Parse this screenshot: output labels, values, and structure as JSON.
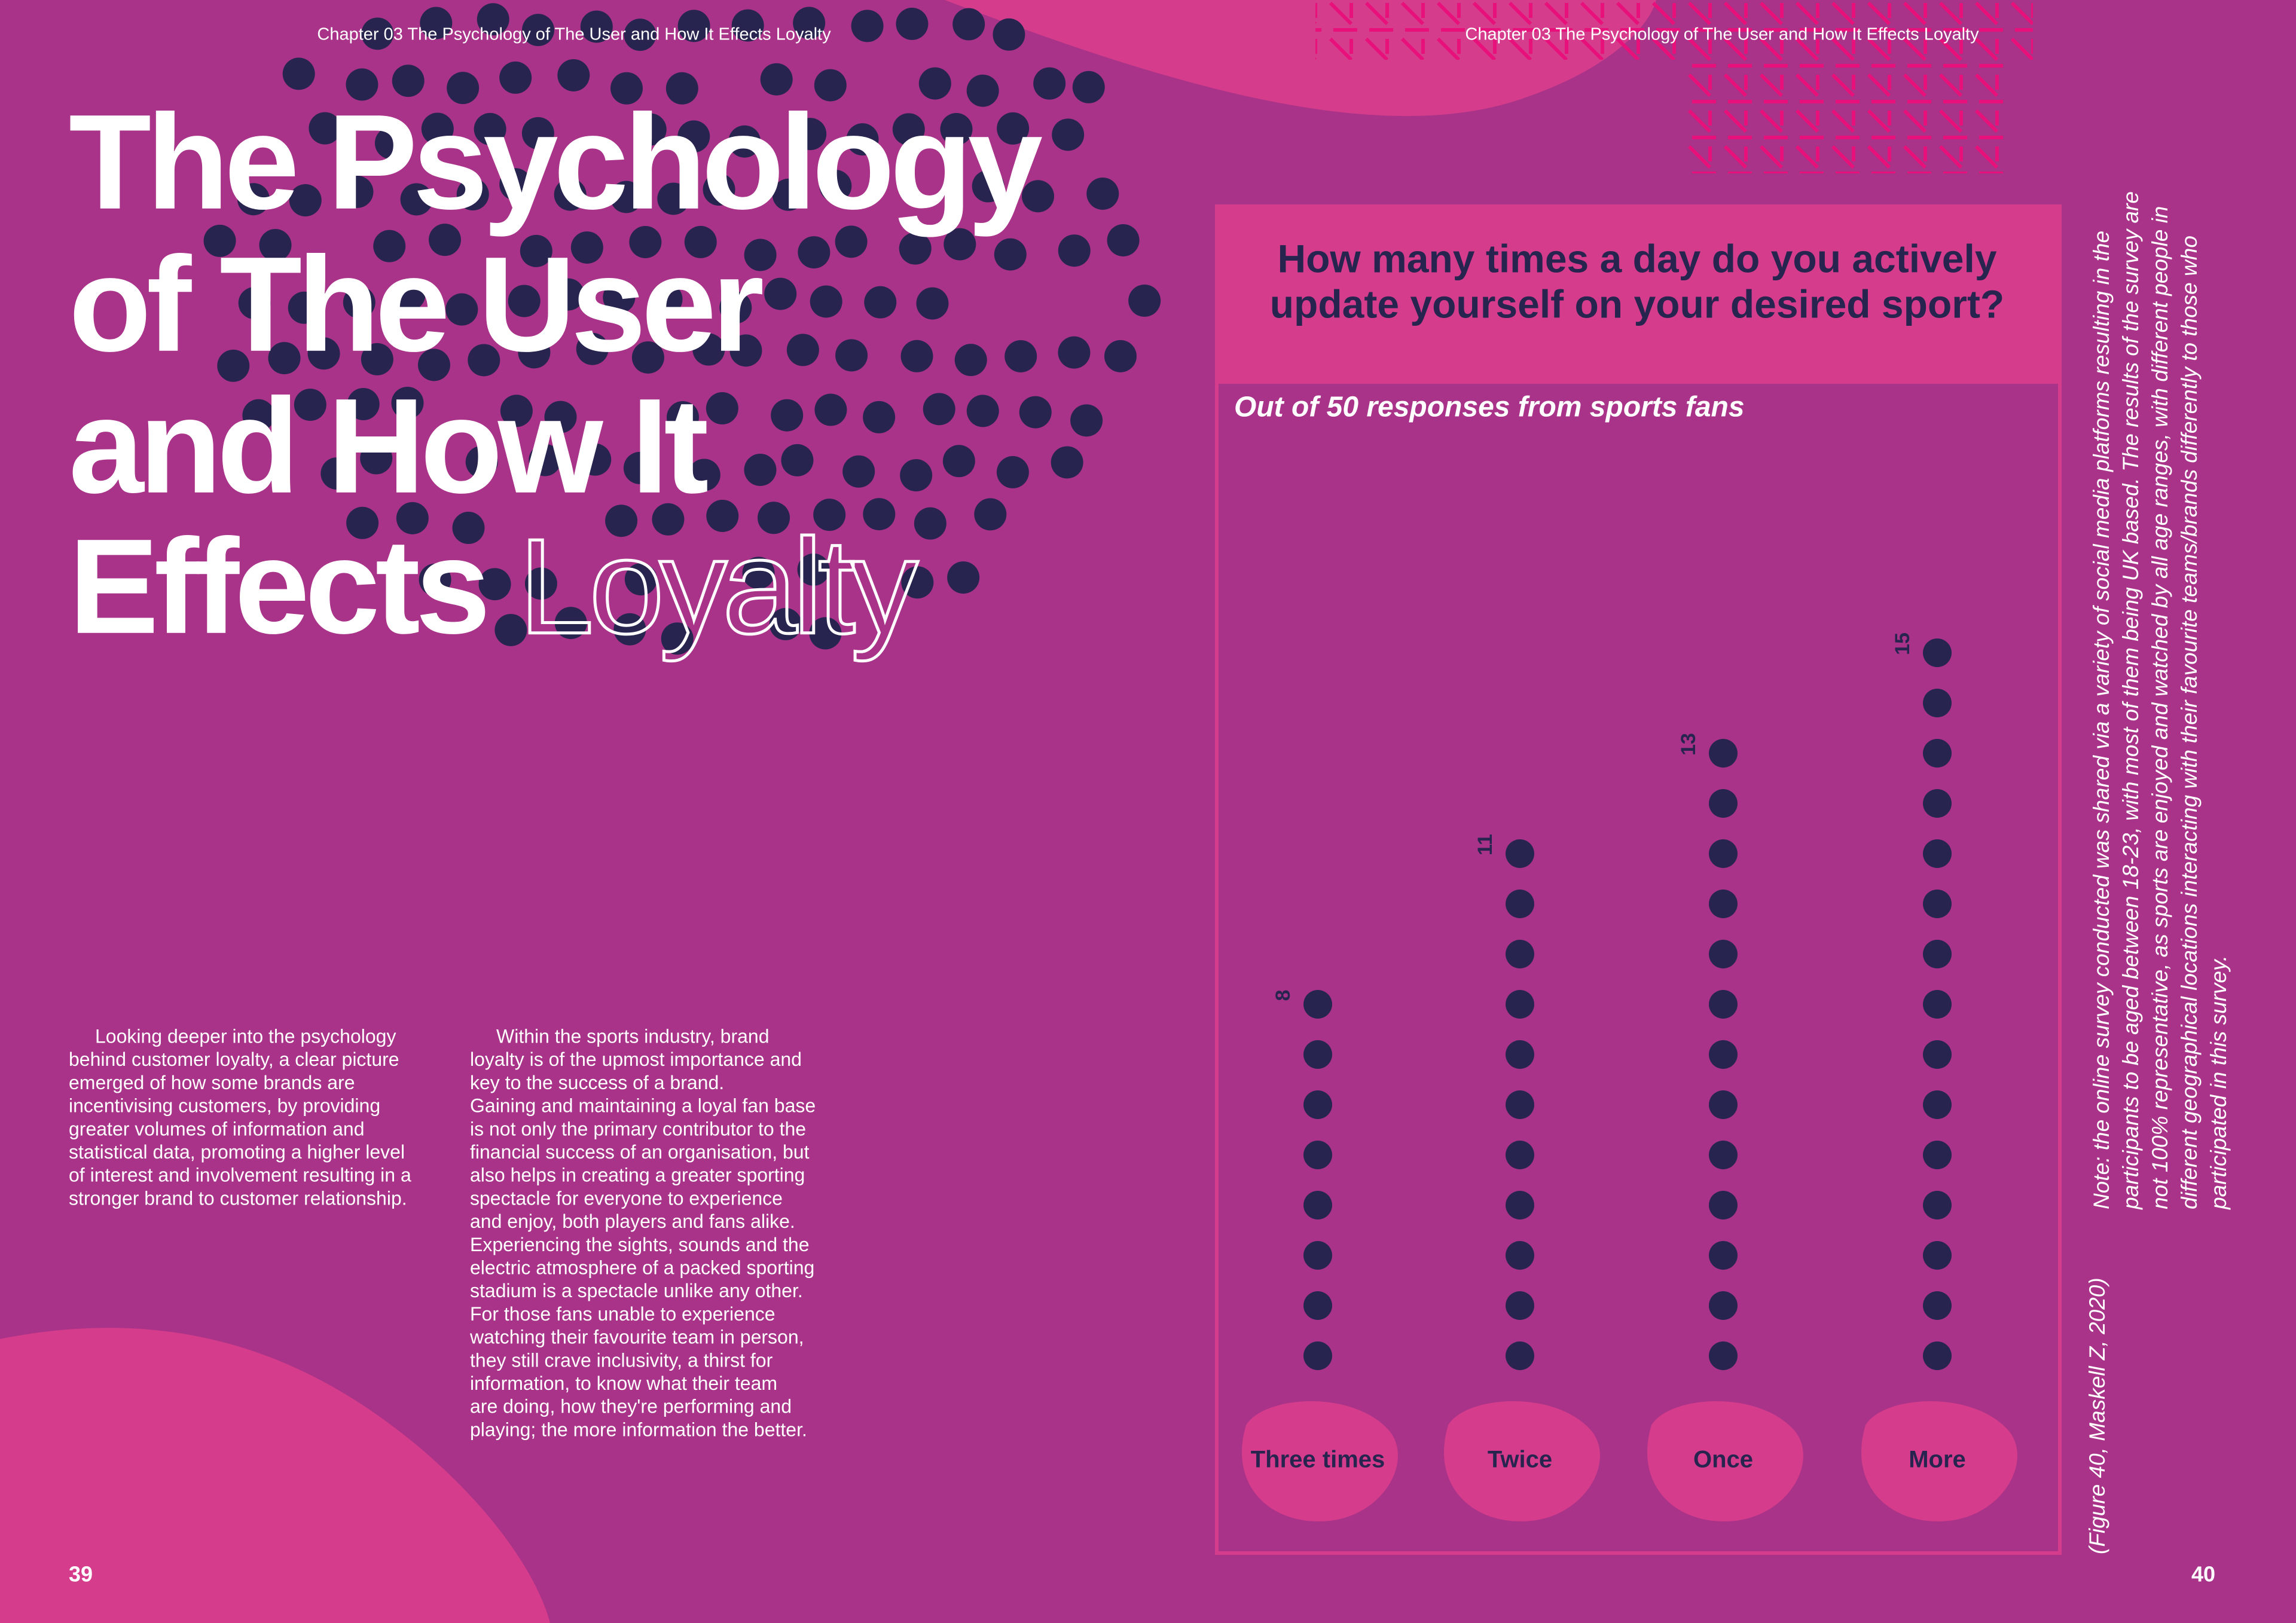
{
  "header": {
    "left": "Chapter 03 The Psychology of The User and How It Effects Loyalty",
    "right": "Chapter 03 The Psychology of The User and How It Effects Loyalty"
  },
  "title": {
    "lines": [
      "The Psychology",
      "of The User",
      "and How It",
      "Effects"
    ],
    "outline_word": "Loyalty"
  },
  "body": {
    "column1": [
      "Looking deeper into the psychology",
      "behind customer loyalty, a clear picture",
      "emerged of how some brands are",
      "incentivising customers, by providing",
      "greater volumes of information and",
      "statistical data, promoting a higher level",
      "of interest and involvement resulting in a",
      "stronger brand to customer relationship."
    ],
    "column2": [
      "Within the sports industry, brand",
      "loyalty is of the upmost importance and",
      "key to the success of a brand.",
      "Gaining and maintaining a loyal fan base",
      "is not only the primary contributor to the",
      "financial success of an organisation, but",
      "also helps in creating a greater sporting",
      "spectacle for everyone to experience",
      "and enjoy, both players and fans alike.",
      "Experiencing the sights, sounds and the",
      "electric atmosphere of a packed sporting",
      "stadium is a spectacle unlike any other.",
      "For those fans unable to experience",
      "watching their favourite team in person,",
      "they still crave inclusivity, a thirst for",
      "information, to know what their team",
      "are doing, how they're performing and",
      "playing; the more information the better."
    ]
  },
  "chart_data": {
    "type": "dot",
    "title": [
      "How many times a day do you actively",
      "update yourself on your desired sport?"
    ],
    "subtitle": "Out of 50 responses from sports fans",
    "categories": [
      "Three times",
      "Twice",
      "Once",
      "More"
    ],
    "values": [
      8,
      11,
      13,
      15
    ],
    "color": "#272550",
    "label_background": "#d63c8c"
  },
  "note": {
    "lines": [
      "Note: the online survey conducted was shared via a variety of social media platforms resulting in the",
      "participants to be aged between 18-23, with most of them being UK based. The results of the survey are",
      "not 100% representative, as sports are enjoyed and watched by all age ranges, with different people in",
      "different geographical locations interacting with their favourite teams/brands differently to those who",
      "participated in this survey."
    ],
    "figure": "(Figure 40, Maskell Z, 2020)"
  },
  "page_numbers": {
    "left": "39",
    "right": "40"
  }
}
